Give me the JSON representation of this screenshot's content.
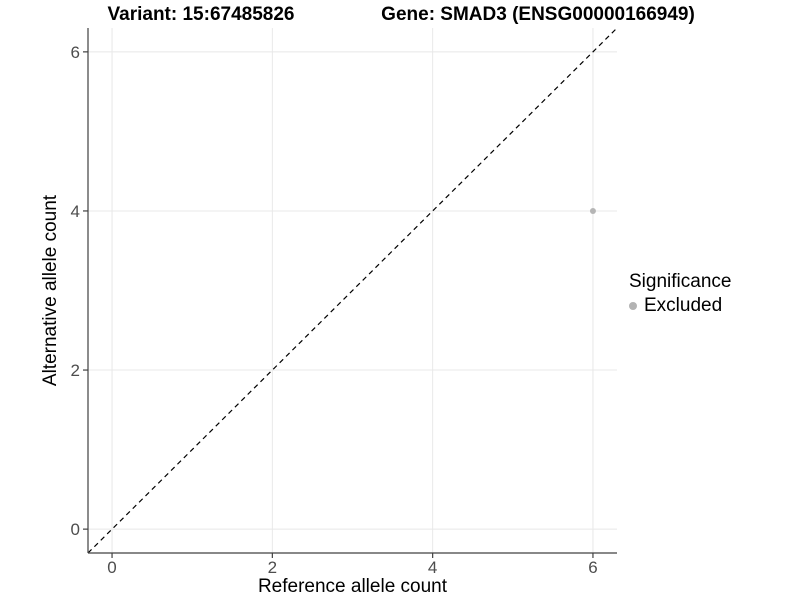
{
  "header": {
    "title_left": "Variant: 15:67485826",
    "title_right": "Gene: SMAD3 (ENSG00000166949)"
  },
  "chart_data": {
    "type": "scatter",
    "xlabel": "Reference allele count",
    "ylabel": "Alternative allele count",
    "xlim": [
      -0.3,
      6.3
    ],
    "ylim": [
      -0.3,
      6.3
    ],
    "xticks": [
      0,
      2,
      4,
      6
    ],
    "yticks": [
      0,
      2,
      4,
      6
    ],
    "grid": true,
    "legend_position": "right",
    "series": [
      {
        "name": "Excluded",
        "color": "#b5b5b5",
        "points": [
          {
            "x": 6,
            "y": 4
          }
        ]
      }
    ],
    "reference_line": {
      "kind": "identity y = x",
      "style": "dashed",
      "color": "#000000"
    }
  },
  "legend": {
    "title": "Significance",
    "entries": [
      {
        "label": "Excluded",
        "color": "#b3b3b3"
      }
    ]
  },
  "colors": {
    "grid": "#e8e8e8",
    "axis": "#404040",
    "tick_label": "#4d4d4d",
    "background": "#ffffff"
  }
}
